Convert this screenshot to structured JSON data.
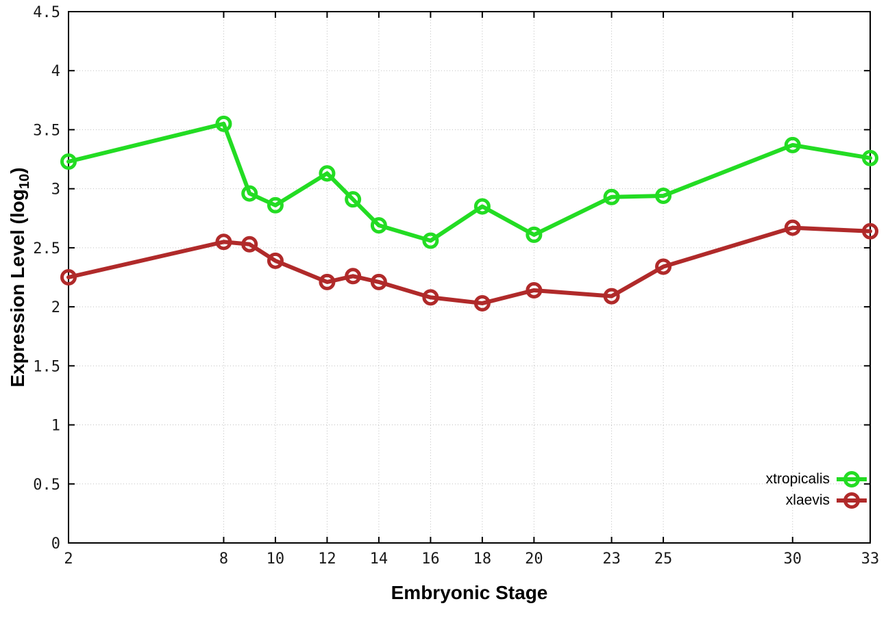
{
  "chart_data": {
    "type": "line",
    "title": "",
    "xlabel": "Embryonic Stage",
    "ylabel": "Expression Level (log10)",
    "ylabel_parts": {
      "main": "Expression Level (log",
      "sub": "10",
      "end": ")"
    },
    "xlim": [
      2,
      33
    ],
    "ylim": [
      0,
      4.5
    ],
    "grid": true,
    "legend_position": "bottom-right-inside",
    "x": [
      2,
      8,
      9,
      10,
      12,
      13,
      14,
      16,
      18,
      20,
      23,
      25,
      30,
      33
    ],
    "x_tick_values": [
      2,
      8,
      10,
      12,
      14,
      16,
      18,
      20,
      23,
      25,
      30,
      33
    ],
    "x_tick_labels": [
      "2",
      "8",
      "10",
      "12",
      "14",
      "16",
      "18",
      "20",
      "23",
      "25",
      "30",
      "33"
    ],
    "y_tick_values": [
      0,
      0.5,
      1,
      1.5,
      2,
      2.5,
      3,
      3.5,
      4,
      4.5
    ],
    "y_tick_labels": [
      "0",
      "0.5",
      "1",
      "1.5",
      "2",
      "2.5",
      "3",
      "3.5",
      "4",
      "4.5"
    ],
    "series": [
      {
        "name": "xtropicalis",
        "color": "#23dc23",
        "marker": "open-circle",
        "values": [
          3.23,
          3.55,
          2.96,
          2.86,
          3.13,
          2.91,
          2.69,
          2.56,
          2.85,
          2.61,
          2.93,
          2.94,
          3.37,
          3.26
        ]
      },
      {
        "name": "xlaevis",
        "color": "#b02a2a",
        "marker": "open-circle",
        "values": [
          2.25,
          2.55,
          2.53,
          2.39,
          2.21,
          2.26,
          2.21,
          2.08,
          2.03,
          2.14,
          2.09,
          2.34,
          2.67,
          2.64
        ]
      }
    ]
  },
  "colors": {
    "background": "#ffffff",
    "grid": "#c0c0c0",
    "axis": "#000000",
    "tick_label": "#1a1a1a"
  }
}
